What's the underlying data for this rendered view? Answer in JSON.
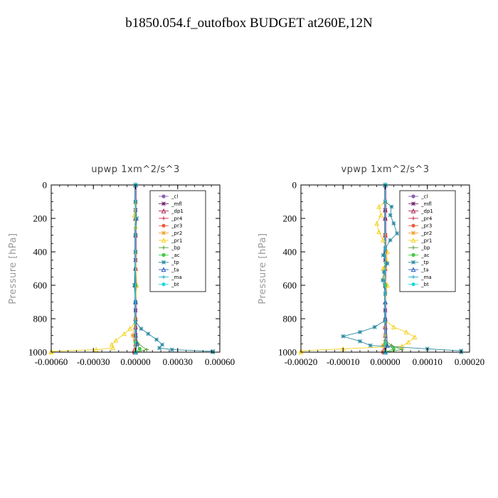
{
  "page_title": "b1850.054.f_outofbox  BUDGET at260E,12N",
  "chart_data": [
    {
      "type": "line",
      "title": "upwp   1xm^2/s^3",
      "ylabel": "Pressure [hPa]",
      "xlim": [
        -0.0006,
        0.0006
      ],
      "ylim": [
        1000,
        0
      ],
      "x_ticks": [
        -0.0006,
        -0.0003,
        0,
        0.0003,
        0.0006
      ],
      "x_tick_labels": [
        "-0.00060",
        "-0.00030",
        "0.00000",
        "0.00030",
        "0.00060"
      ],
      "y_ticks": [
        0,
        200,
        400,
        600,
        800,
        1000
      ],
      "y_tick_labels": [
        "0",
        "200",
        "400",
        "600",
        "800",
        "1000"
      ],
      "legend_position": "top-right",
      "series": [
        {
          "name": "_cl",
          "color": "#8a5fb0",
          "points": [
            [
              0,
              0
            ],
            [
              0,
              100
            ],
            [
              0,
              200
            ],
            [
              0,
              300
            ],
            [
              0,
              400
            ],
            [
              0,
              500
            ],
            [
              0,
              600
            ],
            [
              0,
              700
            ],
            [
              0,
              800
            ],
            [
              0,
              900
            ],
            [
              0,
              1000
            ]
          ]
        },
        {
          "name": "_mfl",
          "color": "#6b1a6b",
          "points": [
            [
              0,
              0
            ],
            [
              0,
              150
            ],
            [
              0,
              300
            ],
            [
              0,
              450
            ],
            [
              0,
              600
            ],
            [
              0,
              750
            ],
            [
              0,
              900
            ],
            [
              0,
              1000
            ]
          ]
        },
        {
          "name": "_dp1",
          "color": "#b0235a",
          "points": [
            [
              0,
              0
            ],
            [
              0,
              100
            ],
            [
              0,
              200
            ],
            [
              0,
              300
            ],
            [
              0,
              400
            ],
            [
              0,
              500
            ],
            [
              0,
              600
            ],
            [
              0,
              700
            ],
            [
              0,
              800
            ],
            [
              0,
              850
            ],
            [
              0,
              900
            ],
            [
              0,
              950
            ],
            [
              0,
              1000
            ]
          ]
        },
        {
          "name": "_pr4",
          "color": "#d93050",
          "points": [
            [
              0,
              0
            ],
            [
              0,
              300
            ],
            [
              0,
              600
            ],
            [
              0,
              800
            ],
            [
              0,
              900
            ],
            [
              0,
              950
            ],
            [
              -2e-05,
              1000
            ]
          ]
        },
        {
          "name": "_pr3",
          "color": "#ee5a3a",
          "points": [
            [
              0,
              0
            ],
            [
              0,
              300
            ],
            [
              0,
              600
            ],
            [
              0,
              850
            ],
            [
              0,
              930
            ],
            [
              -1e-05,
              1000
            ]
          ]
        },
        {
          "name": "_pr2",
          "color": "#f0a030",
          "points": [
            [
              0,
              0
            ],
            [
              0,
              400
            ],
            [
              0,
              800
            ],
            [
              -2e-05,
              900
            ],
            [
              0,
              1000
            ]
          ]
        },
        {
          "name": "_pr1",
          "color": "#f5d020",
          "points": [
            [
              0,
              0
            ],
            [
              0,
              100
            ],
            [
              -8e-06,
              180
            ],
            [
              0,
              250
            ],
            [
              0,
              400
            ],
            [
              8e-06,
              600
            ],
            [
              0,
              700
            ],
            [
              0,
              820
            ],
            [
              -4e-05,
              860
            ],
            [
              -8e-05,
              890
            ],
            [
              -0.00014,
              930
            ],
            [
              -0.00017,
              955
            ],
            [
              -0.00016,
              975
            ],
            [
              -0.00028,
              985
            ],
            [
              -0.0006,
              995
            ],
            [
              -0.0006,
              1000
            ]
          ]
        },
        {
          "name": "_bp",
          "color": "#5aa03a",
          "points": [
            [
              0,
              0
            ],
            [
              0,
              600
            ],
            [
              0,
              900
            ],
            [
              2e-05,
              950
            ],
            [
              8e-05,
              985
            ],
            [
              0,
              1000
            ]
          ]
        },
        {
          "name": "_ac",
          "color": "#44c844",
          "points": [
            [
              0,
              0
            ],
            [
              0,
              600
            ],
            [
              0,
              940
            ],
            [
              3e-05,
              980
            ],
            [
              0,
              1000
            ]
          ]
        },
        {
          "name": "_tp",
          "color": "#2a8aa0",
          "points": [
            [
              0,
              0
            ],
            [
              0,
              100
            ],
            [
              8e-06,
              200
            ],
            [
              0,
              300
            ],
            [
              0,
              400
            ],
            [
              -8e-06,
              600
            ],
            [
              0,
              700
            ],
            [
              0,
              820
            ],
            [
              4e-05,
              860
            ],
            [
              9e-05,
              890
            ],
            [
              0.00015,
              925
            ],
            [
              0.00019,
              955
            ],
            [
              0.00017,
              975
            ],
            [
              0.00026,
              985
            ],
            [
              0.00055,
              995
            ],
            [
              0.00055,
              1000
            ]
          ]
        },
        {
          "name": "_ta",
          "color": "#2a60c0",
          "points": [
            [
              0,
              0
            ],
            [
              0,
              700
            ],
            [
              1e-05,
              950
            ],
            [
              0,
              1000
            ]
          ]
        },
        {
          "name": "_ma",
          "color": "#1ab0c8",
          "points": [
            [
              0,
              0
            ],
            [
              0,
              1000
            ]
          ]
        },
        {
          "name": "_bt",
          "color": "#20d8e0",
          "points": [
            [
              0,
              0
            ],
            [
              0,
              1000
            ]
          ]
        }
      ]
    },
    {
      "type": "line",
      "title": "vpwp   1xm^2/s^3",
      "ylabel": "Pressure [hPa]",
      "xlim": [
        -0.0002,
        0.0002
      ],
      "ylim": [
        1000,
        0
      ],
      "x_ticks": [
        -0.0002,
        -0.0001,
        0,
        0.0001,
        0.0002
      ],
      "x_tick_labels": [
        "-0.00020",
        "-0.00010",
        "0.00000",
        "0.00010",
        "0.00020"
      ],
      "y_ticks": [
        0,
        200,
        400,
        600,
        800,
        1000
      ],
      "y_tick_labels": [
        "0",
        "200",
        "400",
        "600",
        "800",
        "1000"
      ],
      "legend_position": "top-right",
      "series": [
        {
          "name": "_cl",
          "color": "#8a5fb0",
          "points": [
            [
              0,
              0
            ],
            [
              0,
              200
            ],
            [
              0,
              400
            ],
            [
              0,
              600
            ],
            [
              0,
              800
            ],
            [
              0,
              1000
            ]
          ]
        },
        {
          "name": "_mfl",
          "color": "#6b1a6b",
          "points": [
            [
              0,
              0
            ],
            [
              0,
              150
            ],
            [
              0,
              300
            ],
            [
              0,
              450
            ],
            [
              0,
              600
            ],
            [
              0,
              750
            ],
            [
              0,
              900
            ],
            [
              0,
              1000
            ]
          ]
        },
        {
          "name": "_dp1",
          "color": "#b0235a",
          "points": [
            [
              0,
              0
            ],
            [
              0,
              100
            ],
            [
              0,
              150
            ],
            [
              0,
              200
            ],
            [
              0,
              300
            ],
            [
              0,
              400
            ],
            [
              0,
              500
            ],
            [
              0,
              600
            ],
            [
              0,
              700
            ],
            [
              0,
              800
            ],
            [
              0,
              850
            ],
            [
              0,
              900
            ],
            [
              0,
              950
            ],
            [
              0,
              1000
            ]
          ]
        },
        {
          "name": "_pr4",
          "color": "#d93050",
          "points": [
            [
              0,
              0
            ],
            [
              0,
              300
            ],
            [
              0,
              600
            ],
            [
              0,
              850
            ],
            [
              0,
              950
            ],
            [
              -8e-06,
              1000
            ]
          ]
        },
        {
          "name": "_pr3",
          "color": "#ee5a3a",
          "points": [
            [
              0,
              0
            ],
            [
              0,
              300
            ],
            [
              0,
              600
            ],
            [
              0,
              850
            ],
            [
              0,
              950
            ],
            [
              -5e-06,
              1000
            ]
          ]
        },
        {
          "name": "_pr2",
          "color": "#f0a030",
          "points": [
            [
              0,
              0
            ],
            [
              0,
              500
            ],
            [
              0,
              900
            ],
            [
              -5e-06,
              960
            ],
            [
              0,
              1000
            ]
          ]
        },
        {
          "name": "_pr1",
          "color": "#f5d020",
          "points": [
            [
              0,
              0
            ],
            [
              0,
              100
            ],
            [
              -1.5e-05,
              130
            ],
            [
              -1e-05,
              180
            ],
            [
              -2e-05,
              230
            ],
            [
              -1.5e-05,
              280
            ],
            [
              -5e-06,
              330
            ],
            [
              5e-06,
              400
            ],
            [
              3e-06,
              450
            ],
            [
              -5e-06,
              500
            ],
            [
              -3e-06,
              550
            ],
            [
              5e-06,
              600
            ],
            [
              0,
              700
            ],
            [
              0,
              810
            ],
            [
              2e-05,
              850
            ],
            [
              5e-05,
              880
            ],
            [
              7e-05,
              910
            ],
            [
              5.5e-05,
              940
            ],
            [
              4e-05,
              965
            ],
            [
              -0.0001,
              980
            ],
            [
              -0.0002,
              992
            ],
            [
              -0.0002,
              1000
            ]
          ]
        },
        {
          "name": "_bp",
          "color": "#5aa03a",
          "points": [
            [
              0,
              0
            ],
            [
              0,
              600
            ],
            [
              0,
              930
            ],
            [
              1.5e-05,
              960
            ],
            [
              4e-05,
              985
            ],
            [
              0,
              1000
            ]
          ]
        },
        {
          "name": "_ac",
          "color": "#44c844",
          "points": [
            [
              0,
              0
            ],
            [
              0,
              600
            ],
            [
              0,
              950
            ],
            [
              2e-05,
              980
            ],
            [
              0,
              1000
            ]
          ]
        },
        {
          "name": "_tp",
          "color": "#2a8aa0",
          "points": [
            [
              0,
              0
            ],
            [
              0,
              100
            ],
            [
              1.5e-05,
              130
            ],
            [
              1.2e-05,
              180
            ],
            [
              2e-05,
              230
            ],
            [
              2.8e-05,
              290
            ],
            [
              1.2e-05,
              330
            ],
            [
              0,
              380
            ],
            [
              -5e-06,
              420
            ],
            [
              5e-06,
              470
            ],
            [
              -3e-06,
              520
            ],
            [
              -6e-06,
              570
            ],
            [
              0,
              650
            ],
            [
              0,
              810
            ],
            [
              -2.5e-05,
              850
            ],
            [
              -6e-05,
              880
            ],
            [
              -0.0001,
              905
            ],
            [
              -6e-05,
              935
            ],
            [
              -3.5e-05,
              960
            ],
            [
              0.0001,
              980
            ],
            [
              0.00018,
              992
            ],
            [
              0.00018,
              1000
            ]
          ]
        },
        {
          "name": "_ta",
          "color": "#2a60c0",
          "points": [
            [
              0,
              0
            ],
            [
              0,
              700
            ],
            [
              5e-06,
              960
            ],
            [
              0,
              1000
            ]
          ]
        },
        {
          "name": "_ma",
          "color": "#1ab0c8",
          "points": [
            [
              0,
              0
            ],
            [
              0,
              1000
            ]
          ]
        },
        {
          "name": "_bt",
          "color": "#20d8e0",
          "points": [
            [
              0,
              0
            ],
            [
              0,
              1000
            ]
          ]
        }
      ]
    }
  ]
}
